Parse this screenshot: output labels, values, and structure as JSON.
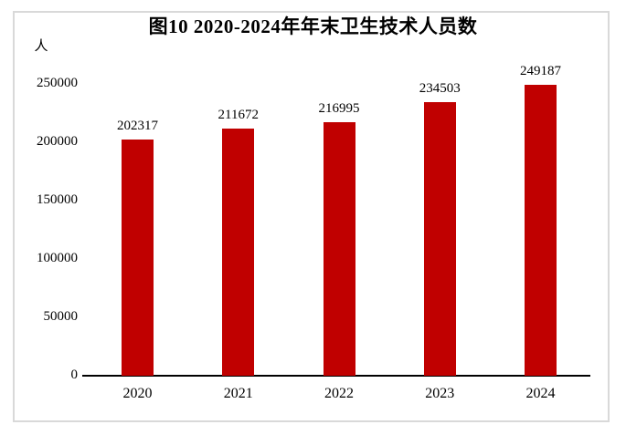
{
  "chart_data": {
    "type": "bar",
    "title": "图10 2020-2024年年末卫生技术人员数",
    "unit_label": "人",
    "categories": [
      "2020",
      "2021",
      "2022",
      "2023",
      "2024"
    ],
    "values": [
      202317,
      211672,
      216995,
      234503,
      249187
    ],
    "xlabel": "",
    "ylabel": "人",
    "ylim": [
      0,
      250000
    ],
    "yticks": [
      0,
      50000,
      100000,
      150000,
      200000,
      250000
    ],
    "grid": false,
    "legend": "none",
    "data_labels_shown": true,
    "bar_color": "#c00000",
    "axis_color": "#000000",
    "text_color": "#000000",
    "frame_border_color": "#d9d9d9",
    "background_color": "#ffffff"
  }
}
